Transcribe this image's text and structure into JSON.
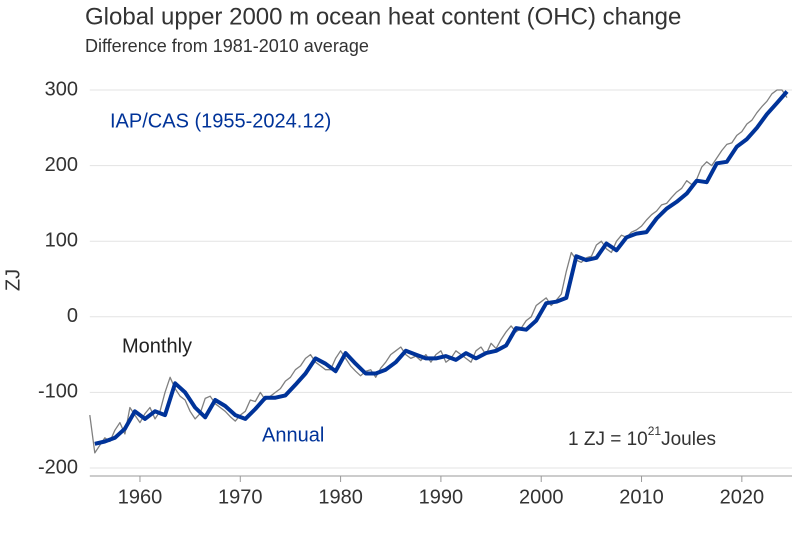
{
  "chart_data": {
    "type": "line",
    "title": "Global upper 2000 m ocean heat content (OHC) change",
    "subtitle": "Difference from 1981-2010 average",
    "y_label": "ZJ",
    "annotation": "IAP/CAS (1955-2024.12)",
    "unit_note": {
      "base": "1 ZJ =  10",
      "exponent": "21",
      "unit": "Joules"
    },
    "xlim": [
      1955,
      2025
    ],
    "ylim": [
      -200,
      300
    ],
    "xticks": [
      1960,
      1970,
      1980,
      1990,
      2000,
      2010,
      2020
    ],
    "yticks": [
      -200,
      -100,
      0,
      100,
      200,
      300
    ],
    "grid": true,
    "series": [
      {
        "name": "Monthly",
        "color": "#808080",
        "x": [
          1955,
          1955.5,
          1956,
          1956.5,
          1957,
          1957.5,
          1958,
          1958.5,
          1959,
          1959.5,
          1960,
          1960.5,
          1961,
          1961.5,
          1962,
          1962.5,
          1963,
          1963.5,
          1964,
          1964.5,
          1965,
          1965.5,
          1966,
          1966.5,
          1967,
          1967.5,
          1968,
          1968.5,
          1969,
          1969.5,
          1970,
          1970.5,
          1971,
          1971.5,
          1972,
          1972.5,
          1973,
          1973.5,
          1974,
          1974.5,
          1975,
          1975.5,
          1976,
          1976.5,
          1977,
          1977.5,
          1978,
          1978.5,
          1979,
          1979.5,
          1980,
          1980.5,
          1981,
          1981.5,
          1982,
          1982.5,
          1983,
          1983.5,
          1984,
          1984.5,
          1985,
          1985.5,
          1986,
          1986.5,
          1987,
          1987.5,
          1988,
          1988.5,
          1989,
          1989.5,
          1990,
          1990.5,
          1991,
          1991.5,
          1992,
          1992.5,
          1993,
          1993.5,
          1994,
          1994.5,
          1995,
          1995.5,
          1996,
          1996.5,
          1997,
          1997.5,
          1998,
          1998.5,
          1999,
          1999.5,
          2000,
          2000.5,
          2001,
          2001.5,
          2002,
          2002.5,
          2003,
          2003.5,
          2004,
          2004.5,
          2005,
          2005.5,
          2006,
          2006.5,
          2007,
          2007.5,
          2008,
          2008.5,
          2009,
          2009.5,
          2010,
          2010.5,
          2011,
          2011.5,
          2012,
          2012.5,
          2013,
          2013.5,
          2014,
          2014.5,
          2015,
          2015.5,
          2016,
          2016.5,
          2017,
          2017.5,
          2018,
          2018.5,
          2019,
          2019.5,
          2020,
          2020.5,
          2021,
          2021.5,
          2022,
          2022.5,
          2023,
          2023.5,
          2024,
          2024.5
        ],
        "values": [
          -130,
          -180,
          -170,
          -160,
          -165,
          -150,
          -140,
          -155,
          -120,
          -130,
          -140,
          -128,
          -120,
          -135,
          -125,
          -100,
          -80,
          -95,
          -105,
          -110,
          -125,
          -135,
          -128,
          -108,
          -105,
          -115,
          -120,
          -125,
          -132,
          -138,
          -130,
          -125,
          -110,
          -112,
          -100,
          -110,
          -105,
          -100,
          -95,
          -85,
          -80,
          -70,
          -65,
          -55,
          -50,
          -60,
          -65,
          -70,
          -70,
          -55,
          -45,
          -55,
          -65,
          -72,
          -78,
          -72,
          -70,
          -80,
          -68,
          -60,
          -50,
          -45,
          -40,
          -50,
          -55,
          -52,
          -58,
          -50,
          -60,
          -50,
          -45,
          -60,
          -55,
          -45,
          -50,
          -55,
          -60,
          -45,
          -40,
          -50,
          -35,
          -42,
          -30,
          -20,
          -12,
          -20,
          -15,
          -5,
          0,
          15,
          20,
          25,
          15,
          22,
          30,
          60,
          85,
          75,
          72,
          78,
          80,
          95,
          100,
          90,
          85,
          100,
          108,
          105,
          112,
          115,
          120,
          128,
          135,
          140,
          148,
          150,
          158,
          165,
          170,
          180,
          175,
          182,
          198,
          205,
          200,
          210,
          220,
          228,
          230,
          240,
          245,
          255,
          260,
          270,
          278,
          285,
          295,
          300,
          300,
          290
        ]
      },
      {
        "name": "Annual",
        "color": "#003399",
        "x": [
          1955.5,
          1956.5,
          1957.5,
          1958.5,
          1959.5,
          1960.5,
          1961.5,
          1962.5,
          1963.5,
          1964.5,
          1965.5,
          1966.5,
          1967.5,
          1968.5,
          1969.5,
          1970.5,
          1971.5,
          1972.5,
          1973.5,
          1974.5,
          1975.5,
          1976.5,
          1977.5,
          1978.5,
          1979.5,
          1980.5,
          1981.5,
          1982.5,
          1983.5,
          1984.5,
          1985.5,
          1986.5,
          1987.5,
          1988.5,
          1989.5,
          1990.5,
          1991.5,
          1992.5,
          1993.5,
          1994.5,
          1995.5,
          1996.5,
          1997.5,
          1998.5,
          1999.5,
          2000.5,
          2001.5,
          2002.5,
          2003.5,
          2004.5,
          2005.5,
          2006.5,
          2007.5,
          2008.5,
          2009.5,
          2010.5,
          2011.5,
          2012.5,
          2013.5,
          2014.5,
          2015.5,
          2016.5,
          2017.5,
          2018.5,
          2019.5,
          2020.5,
          2021.5,
          2022.5,
          2023.5,
          2024.5
        ],
        "values": [
          -168,
          -165,
          -160,
          -148,
          -125,
          -135,
          -125,
          -130,
          -88,
          -100,
          -120,
          -133,
          -110,
          -118,
          -130,
          -135,
          -122,
          -107,
          -107,
          -104,
          -90,
          -75,
          -55,
          -62,
          -72,
          -48,
          -62,
          -75,
          -75,
          -70,
          -60,
          -45,
          -50,
          -55,
          -55,
          -52,
          -57,
          -48,
          -55,
          -48,
          -45,
          -38,
          -15,
          -17,
          -5,
          18,
          20,
          25,
          80,
          75,
          78,
          97,
          88,
          105,
          110,
          112,
          130,
          143,
          152,
          163,
          180,
          178,
          203,
          205,
          225,
          235,
          250,
          268,
          283,
          298
        ]
      }
    ]
  }
}
